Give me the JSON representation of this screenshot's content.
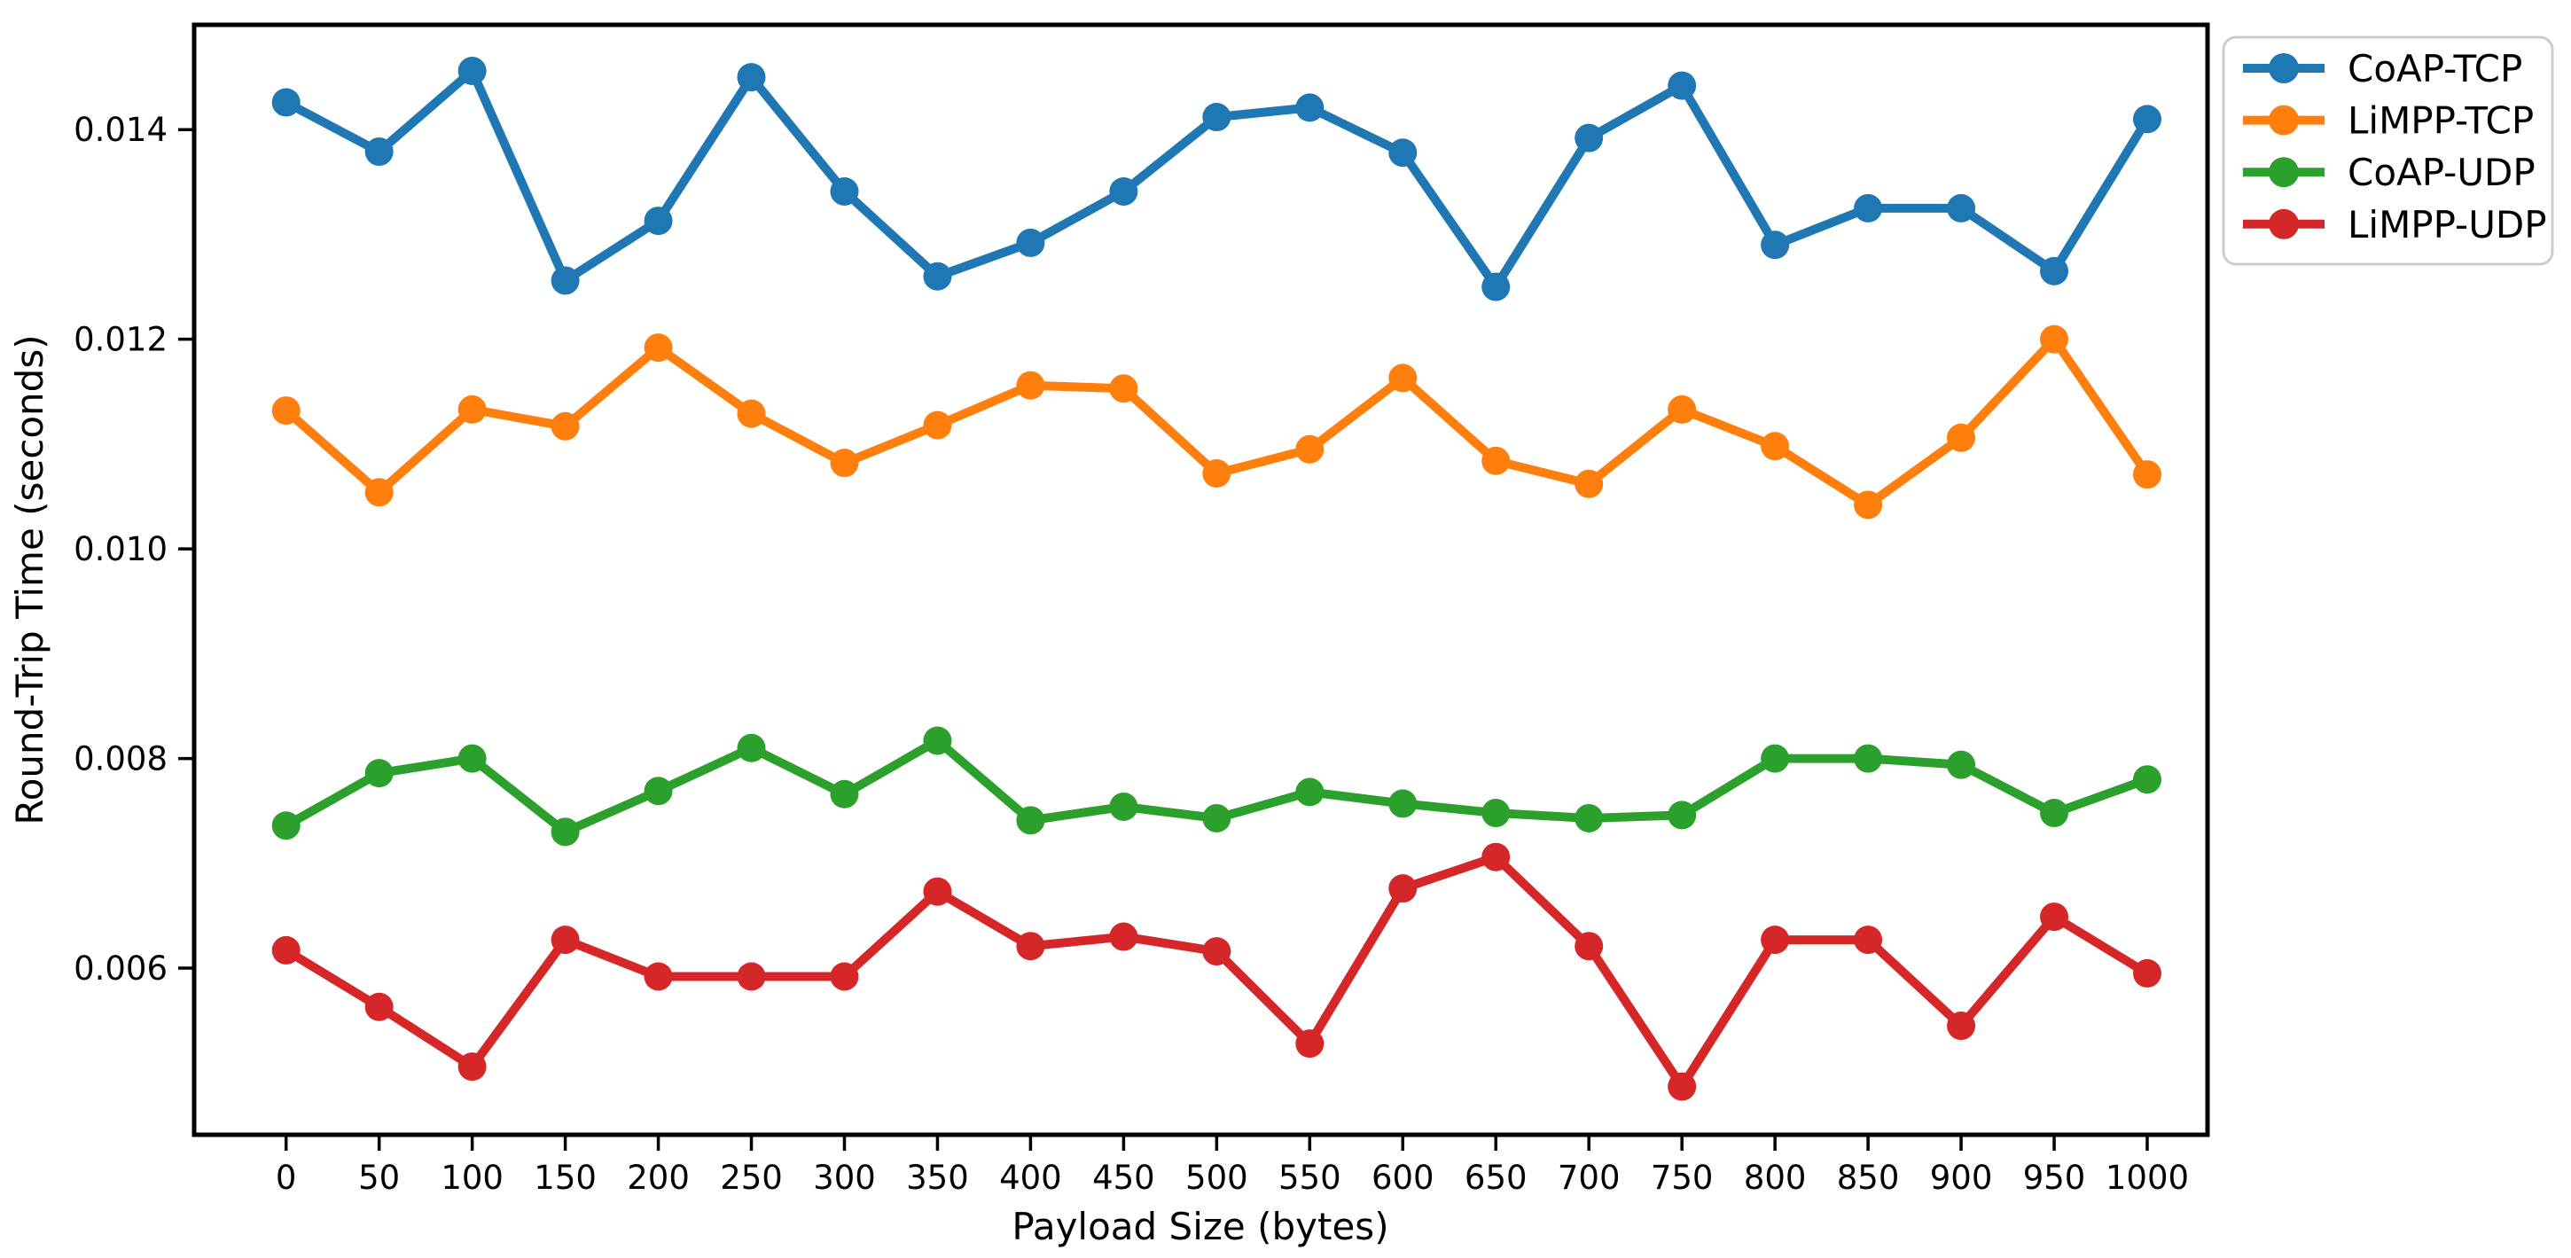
{
  "figure": {
    "background": "#ffffff",
    "frame_color": "#000000"
  },
  "chart_data": {
    "type": "line",
    "title": "",
    "xlabel": "Payload Size (bytes)",
    "ylabel": "Round-Trip Time (seconds)",
    "grid": false,
    "xlim": [
      -49.4,
      1032.4
    ],
    "ylim": [
      0.00441,
      0.015
    ],
    "x": [
      0,
      50,
      100,
      150,
      200,
      250,
      300,
      350,
      400,
      450,
      500,
      550,
      600,
      650,
      700,
      750,
      800,
      850,
      900,
      950,
      1000
    ],
    "x_tick_labels": [
      "0",
      "50",
      "100",
      "150",
      "200",
      "250",
      "300",
      "350",
      "400",
      "450",
      "500",
      "550",
      "600",
      "650",
      "700",
      "750",
      "800",
      "850",
      "900",
      "950",
      "1000"
    ],
    "y_tick_values": [
      0.006,
      0.008,
      0.01,
      0.012,
      0.014
    ],
    "y_tick_labels": [
      "0.006",
      "0.008",
      "0.010",
      "0.012",
      "0.014"
    ],
    "legend": {
      "position": "outside-upper-right",
      "frame_color": "#cccccc",
      "background": "#ffffff"
    },
    "series": [
      {
        "name": "CoAP-TCP",
        "color": "#1f77b4",
        "marker": "circle",
        "values": [
          0.01426,
          0.01379,
          0.01456,
          0.01256,
          0.01313,
          0.0145,
          0.01341,
          0.0126,
          0.01292,
          0.01341,
          0.01412,
          0.01421,
          0.01378,
          0.0125,
          0.01392,
          0.01442,
          0.0129,
          0.01325,
          0.01325,
          0.01265,
          0.0141
        ]
      },
      {
        "name": "LiMPP-TCP",
        "color": "#ff7f0e",
        "marker": "circle",
        "values": [
          0.01132,
          0.01054,
          0.01133,
          0.01117,
          0.01192,
          0.01129,
          0.01082,
          0.01118,
          0.01156,
          0.01153,
          0.01072,
          0.01095,
          0.01163,
          0.01084,
          0.01062,
          0.01133,
          0.01098,
          0.01042,
          0.01106,
          0.012,
          0.01071
        ]
      },
      {
        "name": "CoAP-UDP",
        "color": "#2ca02c",
        "marker": "circle",
        "values": [
          0.00736,
          0.00786,
          0.008,
          0.0073,
          0.00769,
          0.0081,
          0.00766,
          0.00817,
          0.00741,
          0.00754,
          0.00743,
          0.00768,
          0.00757,
          0.00748,
          0.00743,
          0.00746,
          0.008,
          0.008,
          0.00794,
          0.00748,
          0.0078
        ]
      },
      {
        "name": "LiMPP-UDP",
        "color": "#d62728",
        "marker": "circle",
        "values": [
          0.00617,
          0.00563,
          0.00506,
          0.00627,
          0.00592,
          0.00592,
          0.00592,
          0.00673,
          0.00621,
          0.0063,
          0.00616,
          0.00528,
          0.00676,
          0.00706,
          0.00621,
          0.00487,
          0.00627,
          0.00627,
          0.00545,
          0.00649,
          0.00595
        ]
      }
    ]
  }
}
